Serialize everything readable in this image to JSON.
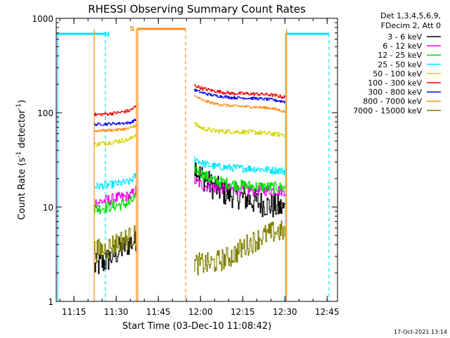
{
  "chart_data": {
    "type": "line",
    "title": "RHESSI Observing Summary Count Rates",
    "xlabel": "Start Time (03-Dec-10 11:08:42)",
    "ylabel_main": "Count Rate (s",
    "ylabel_sup1": "-1",
    "ylabel_mid": " detector",
    "ylabel_sup2": "-1",
    "ylabel_end": ")",
    "yscale": "log",
    "ylim": [
      1,
      1000
    ],
    "xlim_minutes": [
      0,
      100
    ],
    "x_ticks": [
      {
        "minutes": 6.3,
        "label": "11:15"
      },
      {
        "minutes": 21.3,
        "label": "11:30"
      },
      {
        "minutes": 36.3,
        "label": "11:45"
      },
      {
        "minutes": 51.3,
        "label": "12:00"
      },
      {
        "minutes": 66.3,
        "label": "12:15"
      },
      {
        "minutes": 81.3,
        "label": "12:30"
      },
      {
        "minutes": 96.3,
        "label": "12:45"
      }
    ],
    "y_ticks": [
      {
        "value": 1,
        "label": "1"
      },
      {
        "value": 10,
        "label": "10"
      },
      {
        "value": 100,
        "label": "100"
      },
      {
        "value": 1000,
        "label": "1000"
      }
    ],
    "legend_header": [
      "Det 1,3,4,5,6,9,",
      "FDecim 2, Att 0"
    ],
    "legend_position": "right",
    "timestamp": "17-Oct-2021 13:14",
    "markers": {
      "night_label": "N",
      "saa_label": "S",
      "night_color": "#00e5ff",
      "saa_color": "#ff8c1a",
      "night_bars": [
        [
          0,
          17.5
        ],
        [
          81.5,
          97.0
        ]
      ],
      "night_lines_solid": [
        0.5,
        81.5
      ],
      "night_lines_dashed": [
        17.5,
        97.0
      ],
      "saa_bar": [
        28.5,
        46.0
      ],
      "saa_lines_solid": [
        13.5,
        28.5,
        29.0,
        81.9
      ],
      "saa_lines_dashed": [
        46.0
      ]
    },
    "segments": [
      {
        "start": 13.5,
        "end": 28.5
      },
      {
        "start": 49.0,
        "end": 81.5
      }
    ],
    "series": [
      {
        "name": "3 - 6 keV",
        "color": "#000000",
        "seg1": [
          [
            13.5,
            2.3
          ],
          [
            17,
            2.6
          ],
          [
            21,
            3.2
          ],
          [
            25,
            4.0
          ],
          [
            28,
            4.4
          ],
          [
            28.5,
            5.0
          ]
        ],
        "seg2": [
          [
            49,
            28
          ],
          [
            51,
            22
          ],
          [
            55,
            17
          ],
          [
            60,
            14
          ],
          [
            65,
            13
          ],
          [
            70,
            11.5
          ],
          [
            75,
            10.5
          ],
          [
            81.5,
            9.5
          ]
        ],
        "noise": 0.14
      },
      {
        "name": "6 - 12 keV",
        "color": "#ee00ee",
        "seg1": [
          [
            13.5,
            11
          ],
          [
            18,
            11.8
          ],
          [
            22,
            12.5
          ],
          [
            26,
            13
          ],
          [
            28.5,
            15
          ]
        ],
        "seg2": [
          [
            49,
            19
          ],
          [
            52,
            17
          ],
          [
            56,
            16
          ],
          [
            62,
            15.5
          ],
          [
            70,
            15
          ],
          [
            81.5,
            15
          ]
        ],
        "noise": 0.06
      },
      {
        "name": "12 - 25 keV",
        "color": "#00dd00",
        "seg1": [
          [
            13.5,
            9.5
          ],
          [
            18,
            10
          ],
          [
            22,
            10.5
          ],
          [
            26,
            11
          ],
          [
            28.5,
            13
          ]
        ],
        "seg2": [
          [
            49,
            26
          ],
          [
            52,
            22
          ],
          [
            56,
            19
          ],
          [
            62,
            17.5
          ],
          [
            70,
            16.5
          ],
          [
            81.5,
            16
          ]
        ],
        "noise": 0.06
      },
      {
        "name": "25 - 50 keV",
        "color": "#00e5ff",
        "seg1": [
          [
            13.5,
            16.5
          ],
          [
            18,
            17
          ],
          [
            22,
            17.8
          ],
          [
            26,
            18.5
          ],
          [
            28.5,
            22
          ]
        ],
        "seg2": [
          [
            49,
            33
          ],
          [
            52,
            29
          ],
          [
            56,
            27
          ],
          [
            62,
            26
          ],
          [
            70,
            25.5
          ],
          [
            81.5,
            24
          ]
        ],
        "noise": 0.04
      },
      {
        "name": "50 - 100 keV",
        "color": "#d4d400",
        "seg1": [
          [
            13.5,
            46
          ],
          [
            18,
            48
          ],
          [
            22,
            50
          ],
          [
            26,
            52
          ],
          [
            28.5,
            60
          ]
        ],
        "seg2": [
          [
            49,
            76
          ],
          [
            52,
            68
          ],
          [
            56,
            64
          ],
          [
            62,
            63
          ],
          [
            70,
            62
          ],
          [
            81.5,
            58
          ]
        ],
        "noise": 0.025
      },
      {
        "name": "100 - 300 keV",
        "color": "#ee0000",
        "seg1": [
          [
            13.5,
            95
          ],
          [
            18,
            97
          ],
          [
            22,
            100
          ],
          [
            26,
            105
          ],
          [
            28.5,
            118
          ]
        ],
        "seg2": [
          [
            49,
            195
          ],
          [
            52,
            180
          ],
          [
            56,
            170
          ],
          [
            62,
            160
          ],
          [
            70,
            158
          ],
          [
            76,
            155
          ],
          [
            81.5,
            145
          ]
        ],
        "noise": 0.018
      },
      {
        "name": "300 - 800 keV",
        "color": "#0000ee",
        "seg1": [
          [
            13.5,
            75
          ],
          [
            18,
            76
          ],
          [
            22,
            77
          ],
          [
            26,
            78
          ],
          [
            28.5,
            85
          ]
        ],
        "seg2": [
          [
            49,
            175
          ],
          [
            52,
            162
          ],
          [
            56,
            152
          ],
          [
            62,
            145
          ],
          [
            70,
            142
          ],
          [
            76,
            138
          ],
          [
            81.5,
            130
          ]
        ],
        "noise": 0.015
      },
      {
        "name": "800 - 7000 keV",
        "color": "#ff8c1a",
        "seg1": [
          [
            13.5,
            64
          ],
          [
            18,
            65
          ],
          [
            22,
            66
          ],
          [
            26,
            68
          ],
          [
            28.5,
            75
          ]
        ],
        "seg2": [
          [
            49,
            150
          ],
          [
            52,
            135
          ],
          [
            56,
            125
          ],
          [
            62,
            118
          ],
          [
            70,
            115
          ],
          [
            76,
            112
          ],
          [
            81.5,
            102
          ]
        ],
        "noise": 0.015
      },
      {
        "name": "7000 - 15000 keV",
        "color": "#808000",
        "seg1": [
          [
            13.5,
            3.5
          ],
          [
            17,
            3.5
          ],
          [
            20,
            4.0
          ],
          [
            24,
            4.5
          ],
          [
            28.5,
            5.0
          ]
        ],
        "seg2": [
          [
            49,
            2.5
          ],
          [
            55,
            2.5
          ],
          [
            62,
            3.0
          ],
          [
            68,
            4.0
          ],
          [
            74,
            5.0
          ],
          [
            78,
            5.5
          ],
          [
            81.5,
            5.5
          ]
        ],
        "noise": 0.12
      }
    ]
  }
}
